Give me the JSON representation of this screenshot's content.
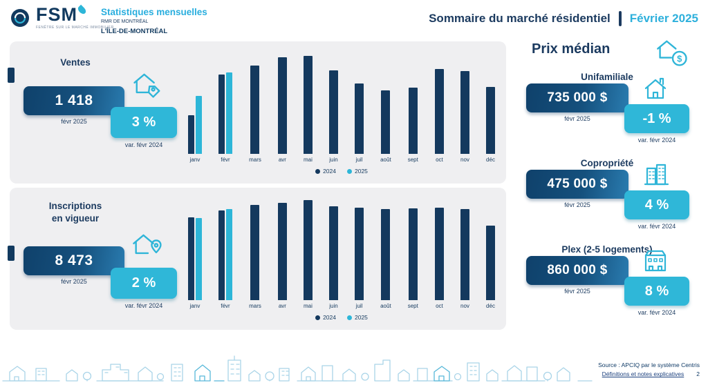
{
  "header": {
    "brand": "FSM",
    "brand_tagline": "FENÊTRE SUR LE MARCHÉ IMMOBILIER",
    "product": "Statistiques mensuelles",
    "region": "RMR DE MONTRÉAL",
    "area": "L'ÎLE-DE-MONTRÉAL",
    "title": "Sommaire du marché résidentiel",
    "period": "Février 2025"
  },
  "ventes": {
    "title": "Ventes",
    "value": "1 418",
    "period": "févr 2025",
    "variation": "3 %",
    "variation_label": "var. févr 2024"
  },
  "inscriptions": {
    "title_line1": "Inscriptions",
    "title_line2": "en vigueur",
    "value": "8 473",
    "period": "févr 2025",
    "variation": "2 %",
    "variation_label": "var. févr 2024"
  },
  "prix_median": {
    "title": "Prix médian",
    "items": [
      {
        "label": "Unifamiliale",
        "value": "735 000 $",
        "period": "févr 2025",
        "variation": "-1 %",
        "variation_label": "var. févr 2024"
      },
      {
        "label": "Copropriété",
        "value": "475 000 $",
        "period": "févr 2025",
        "variation": "4 %",
        "variation_label": "var. févr 2024"
      },
      {
        "label": "Plex (2-5 logements)",
        "value": "860 000 $",
        "period": "févr 2025",
        "variation": "8 %",
        "variation_label": "var. févr 2024"
      }
    ]
  },
  "chart_data": [
    {
      "type": "bar",
      "name": "ventes-mensuelles",
      "title": "Ventes",
      "categories": [
        "janv",
        "févr",
        "mars",
        "avr",
        "mai",
        "juin",
        "juil",
        "août",
        "sept",
        "oct",
        "nov",
        "déc"
      ],
      "series": [
        {
          "name": "2024",
          "color": "#14395e",
          "values": [
            670,
            1380,
            1530,
            1680,
            1700,
            1450,
            1220,
            1100,
            1150,
            1470,
            1440,
            1160
          ]
        },
        {
          "name": "2025",
          "color": "#2db6d8",
          "values": [
            1010,
            1418,
            null,
            null,
            null,
            null,
            null,
            null,
            null,
            null,
            null,
            null
          ]
        }
      ],
      "ylim": [
        0,
        1800
      ],
      "grid": false,
      "legend_position": "bottom",
      "values_estimated": true
    },
    {
      "type": "bar",
      "name": "inscriptions-en-vigueur",
      "title": "Inscriptions en vigueur",
      "categories": [
        "janv",
        "févr",
        "mars",
        "avr",
        "mai",
        "juin",
        "juil",
        "août",
        "sept",
        "oct",
        "nov",
        "déc"
      ],
      "series": [
        {
          "name": "2024",
          "color": "#14395e",
          "values": [
            7650,
            8310,
            8800,
            9050,
            9300,
            8700,
            8600,
            8470,
            8540,
            8600,
            8470,
            6900
          ]
        },
        {
          "name": "2025",
          "color": "#2db6d8",
          "values": [
            7600,
            8473,
            null,
            null,
            null,
            null,
            null,
            null,
            null,
            null,
            null,
            null
          ]
        }
      ],
      "ylim": [
        0,
        9600
      ],
      "grid": false,
      "legend_position": "bottom",
      "values_estimated": true
    }
  ],
  "footer": {
    "source": "Source : APCIQ par le système Centris",
    "link": "Définitions et notes explicatives",
    "page": "2"
  },
  "colors": {
    "navy": "#14395e",
    "cyan": "#2db6d8",
    "panel_bg": "#efeff1",
    "value_box_gradient_start": "#0f416b",
    "value_box_gradient_end": "#2a7cb0"
  }
}
